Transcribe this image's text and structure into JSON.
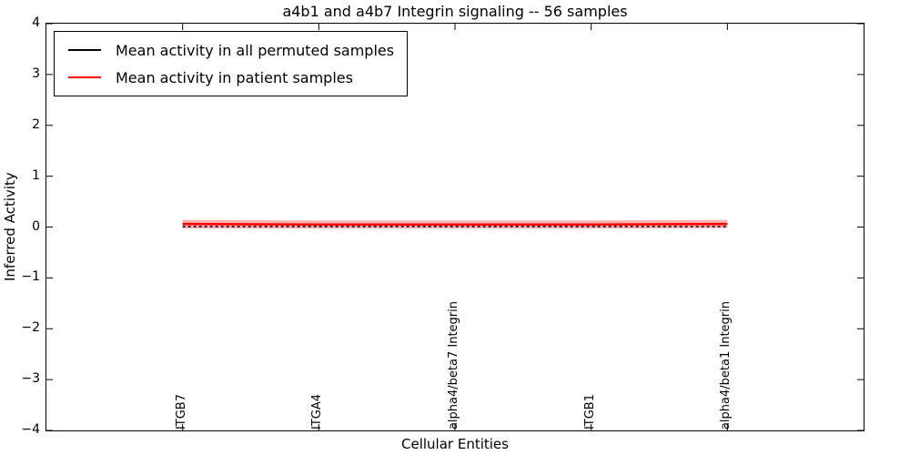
{
  "figure": {
    "background": "#ffffff",
    "frame_color": "#000000"
  },
  "chart_data": {
    "type": "line",
    "title": "a4b1 and a4b7 Integrin signaling -- 56 samples",
    "xlabel": "Cellular Entities",
    "ylabel": "Inferred Activity",
    "xlim": [
      0,
      6
    ],
    "ylim": [
      -4,
      4
    ],
    "grid": false,
    "ytick_values": [
      4,
      3,
      2,
      1,
      0,
      -1,
      -2,
      -3,
      -4
    ],
    "ytick_labels": [
      "4",
      "3",
      "2",
      "1",
      "0",
      "−1",
      "−2",
      "−3",
      "−4"
    ],
    "categories": [
      "ITGB7",
      "ITGA4",
      "alpha4/beta7 Integrin",
      "ITGB1",
      "alpha4/beta1 Integrin"
    ],
    "category_x": [
      1,
      2,
      3,
      4,
      5
    ],
    "series": [
      {
        "name": "Mean activity in all permuted samples",
        "color": "#000000",
        "style": "dashed",
        "width": 1.5,
        "values": [
          0.01,
          0.01,
          0.01,
          0.01,
          0.01
        ]
      },
      {
        "name": "Mean activity in patient samples",
        "color": "#ff0000",
        "style": "solid",
        "width": 2.5,
        "values": [
          0.06,
          0.05,
          0.05,
          0.05,
          0.06
        ]
      }
    ],
    "band": {
      "color": "#ff0000",
      "opacity": 0.3,
      "upper": [
        0.14,
        0.13,
        0.13,
        0.13,
        0.14
      ],
      "lower": [
        -0.03,
        -0.03,
        -0.03,
        -0.03,
        -0.02
      ]
    },
    "legend": {
      "position": "upper left"
    }
  }
}
